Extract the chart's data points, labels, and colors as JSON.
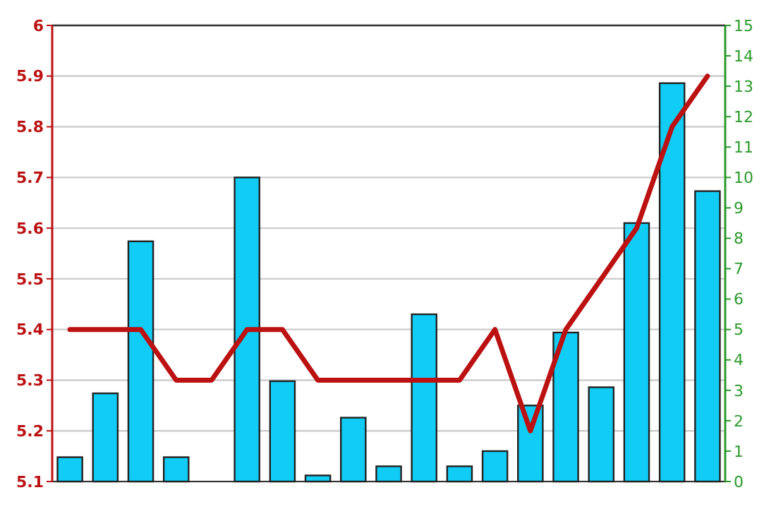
{
  "chart_data": {
    "type": "bar",
    "categories": [
      null,
      null,
      null,
      null,
      null,
      null,
      null,
      null,
      null,
      null,
      null,
      null,
      null,
      null,
      null,
      null,
      null,
      null,
      null
    ],
    "series": [
      {
        "axis": "y2",
        "color": "#11ccf5",
        "values": [
          0.8,
          2.9,
          7.9,
          0.8,
          null,
          10,
          3.3,
          0.2,
          2.1,
          0.5,
          5.5,
          0.5,
          1,
          2.5,
          4.9,
          3.1,
          8.5,
          13.1,
          9.55
        ]
      },
      {
        "type": "line",
        "axis": "y",
        "color": "#bb1111",
        "values": [
          5.4,
          5.4,
          5.4,
          5.3,
          5.3,
          5.4,
          5.4,
          5.3,
          5.3,
          5.3,
          5.3,
          5.3,
          5.4,
          5.2,
          5.4,
          5.5,
          5.6,
          5.8,
          5.9
        ]
      }
    ],
    "ylim": [
      5.1,
      6
    ],
    "yticks": [
      5.1,
      5.2,
      5.3,
      5.4,
      5.5,
      5.6,
      5.7,
      5.8,
      5.9,
      6
    ],
    "y2lim": [
      0,
      15
    ],
    "y2ticks": [
      0,
      1,
      2,
      3,
      4,
      5,
      6,
      7,
      8,
      9,
      10,
      11,
      12,
      13,
      14,
      15
    ],
    "grid": "y",
    "marker": "none",
    "line_style": "solid"
  }
}
